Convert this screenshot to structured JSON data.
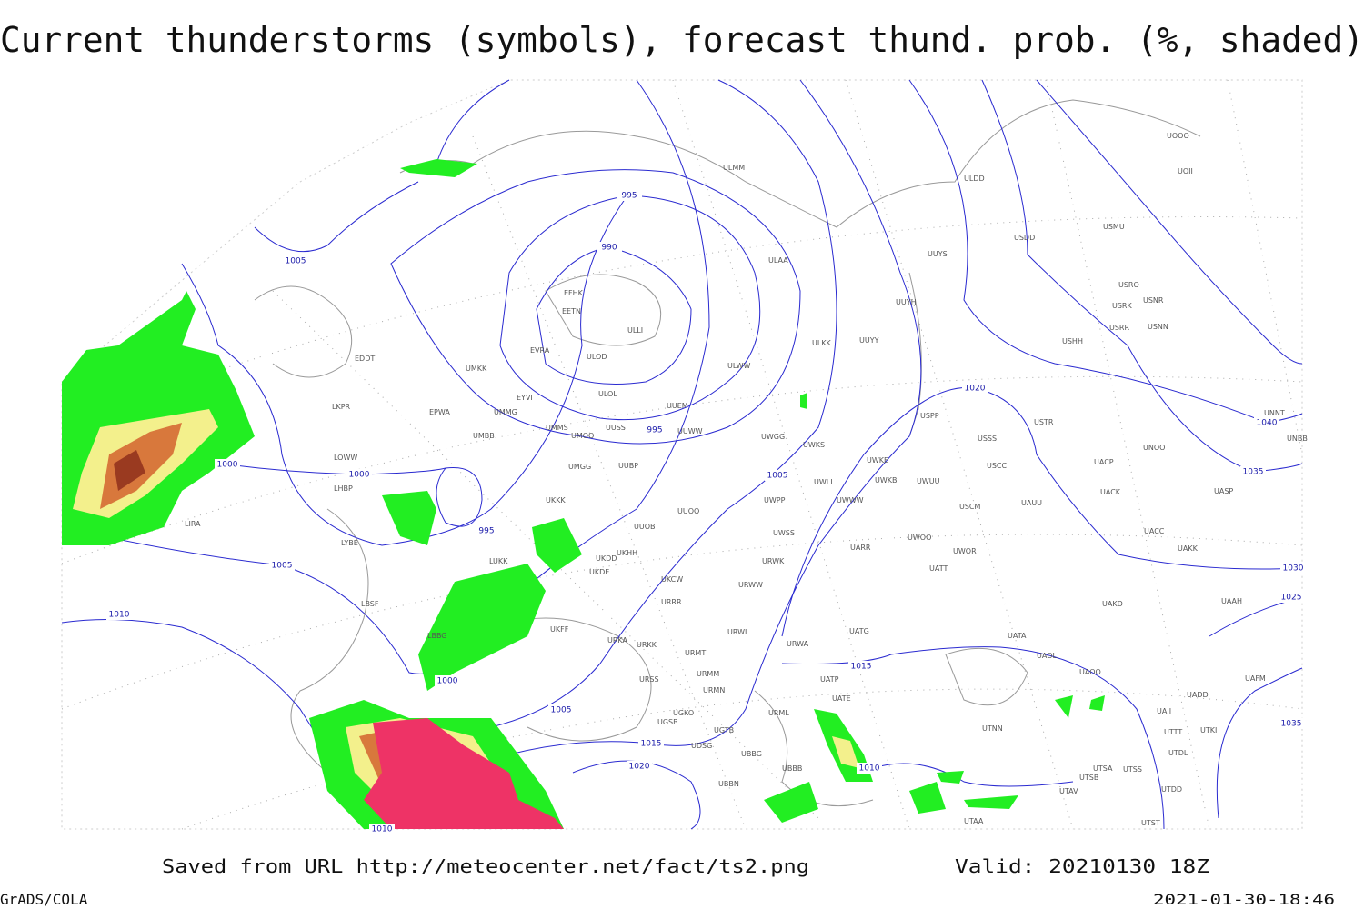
{
  "header": {
    "title": "Current thunderstorms (symbols), forecast thund. prob. (%, shaded)"
  },
  "footer": {
    "source": "Saved from URL http://meteocenter.net/fact/ts2.png",
    "valid": "Valid: 20210130 18Z",
    "software": "GrADS/COLA",
    "timestamp": "2021-01-30-18:46"
  },
  "stations": [
    "EFHK",
    "EETN",
    "EVRA",
    "ULOD",
    "ULLI",
    "UMKK",
    "EYVI",
    "UMMG",
    "ULOL",
    "UUEM",
    "EDDT",
    "EPWA",
    "LKPR",
    "UMMS",
    "UMOO",
    "UUSS",
    "UUWW",
    "UMBB",
    "LOWW",
    "UMGG",
    "UUBP",
    "LHBP",
    "UKKK",
    "UUOO",
    "UUOB",
    "LIRA",
    "LYBE",
    "UKHH",
    "UKDD",
    "LUKK",
    "UKDE",
    "UKCW",
    "LBSF",
    "URRR",
    "UKFF",
    "LBBG",
    "URKA",
    "URKK",
    "URWI",
    "URMT",
    "URMM",
    "URSS",
    "URMN",
    "UGKO",
    "UGSB",
    "UGTB",
    "UDSG",
    "UBBG",
    "UBBN",
    "URML",
    "UBBB",
    "URWA",
    "UATG",
    "UATE",
    "UATP",
    "UATA",
    "UAOL",
    "UAOO",
    "UADD",
    "UAII",
    "UTTT",
    "UTKI",
    "UAFM",
    "UTDL",
    "UTSA",
    "UTSB",
    "UTSS",
    "UTAV",
    "UTNN",
    "UTAA",
    "UTST",
    "UTDD",
    "UAKD",
    "UAAH",
    "UAKK",
    "UACC",
    "UASP",
    "UACK",
    "UACP",
    "UNOO",
    "UNNT",
    "UNBB",
    "USCC",
    "USSS",
    "USTR",
    "USCM",
    "UAUU",
    "USHH",
    "USRR",
    "USNN",
    "USRK",
    "USNR",
    "USRO",
    "USMU",
    "USDD",
    "ULDD",
    "UOII",
    "UOOO",
    "ULAA",
    "UUYY",
    "ULWW",
    "ULKK",
    "UUYH",
    "UUYS",
    "ULMM",
    "USPP",
    "UWKS",
    "UWGG",
    "UWKE",
    "UWKB",
    "UWUU",
    "UWLL",
    "UWWW",
    "UWPP",
    "UWSS",
    "UARR",
    "UWOO",
    "UWOR",
    "UATT",
    "URWK",
    "URWW"
  ],
  "isobar_labels": [
    1005,
    995,
    990,
    995,
    1000,
    1000,
    995,
    1005,
    1010,
    1000,
    1005,
    1015,
    1020,
    1010,
    1005,
    1020,
    1015,
    1010,
    1040,
    1035,
    1030,
    1025,
    1035
  ]
}
